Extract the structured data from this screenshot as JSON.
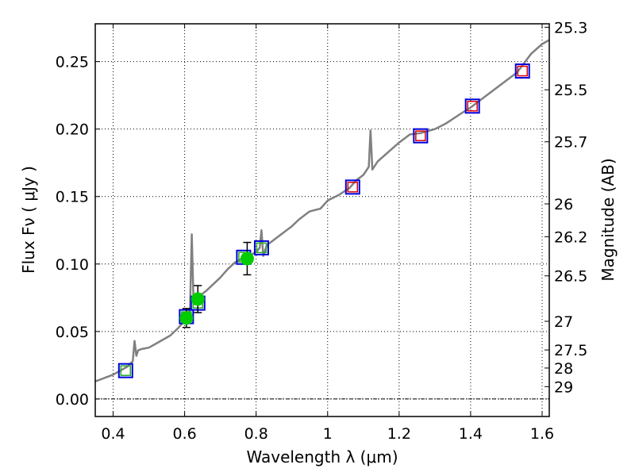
{
  "chart_data": {
    "type": "scatter",
    "xlabel": "Wavelength  λ (μm)",
    "ylabel": "Flux  Fν ( μJy )",
    "y2label": "Magnitude (AB)",
    "xlim": [
      0.35,
      1.62
    ],
    "ylim": [
      -0.013,
      0.278
    ],
    "xticks": [
      0.4,
      0.6,
      0.8,
      1.0,
      1.2,
      1.4,
      1.6
    ],
    "xtick_labels": [
      "0.4",
      "0.6",
      "0.8",
      "1",
      "1.2",
      "1.4",
      "1.6"
    ],
    "yticks": [
      0.0,
      0.05,
      0.1,
      0.15,
      0.2,
      0.25
    ],
    "ytick_labels": [
      "0.00",
      "0.05",
      "0.10",
      "0.15",
      "0.20",
      "0.25"
    ],
    "mag_ticks": [
      25.3,
      25.5,
      25.7,
      26,
      26.2,
      26.5,
      27,
      27.5,
      28,
      29
    ],
    "mag_tick_labels": [
      "25.3",
      "25.5",
      "25.7",
      "26",
      "26.2",
      "26.5",
      "27",
      "27.5",
      "28",
      "29"
    ],
    "colors": {
      "sed": "#808080",
      "model_box": "#0000dd",
      "obs": "#00cc00",
      "inner_green": "#22aa22",
      "inner_red": "#dd0000"
    },
    "sed_line": {
      "x": [
        0.35,
        0.38,
        0.4,
        0.42,
        0.44,
        0.455,
        0.46,
        0.465,
        0.47,
        0.48,
        0.5,
        0.52,
        0.54,
        0.56,
        0.58,
        0.6,
        0.615,
        0.62,
        0.625,
        0.63,
        0.64,
        0.66,
        0.68,
        0.7,
        0.72,
        0.74,
        0.76,
        0.78,
        0.8,
        0.81,
        0.815,
        0.82,
        0.83,
        0.85,
        0.88,
        0.9,
        0.92,
        0.95,
        0.98,
        1.0,
        1.03,
        1.06,
        1.08,
        1.1,
        1.115,
        1.12,
        1.125,
        1.14,
        1.17,
        1.2,
        1.23,
        1.26,
        1.3,
        1.33,
        1.37,
        1.4,
        1.43,
        1.47,
        1.5,
        1.53,
        1.55,
        1.57,
        1.6,
        1.62
      ],
      "y": [
        0.013,
        0.016,
        0.018,
        0.021,
        0.024,
        0.028,
        0.043,
        0.032,
        0.036,
        0.037,
        0.038,
        0.041,
        0.044,
        0.047,
        0.052,
        0.058,
        0.066,
        0.122,
        0.07,
        0.072,
        0.076,
        0.08,
        0.085,
        0.09,
        0.096,
        0.101,
        0.104,
        0.106,
        0.109,
        0.112,
        0.125,
        0.106,
        0.114,
        0.118,
        0.124,
        0.128,
        0.133,
        0.139,
        0.141,
        0.147,
        0.151,
        0.156,
        0.162,
        0.166,
        0.172,
        0.199,
        0.17,
        0.176,
        0.183,
        0.19,
        0.196,
        0.197,
        0.2,
        0.204,
        0.211,
        0.216,
        0.222,
        0.23,
        0.236,
        0.242,
        0.249,
        0.256,
        0.263,
        0.266
      ]
    },
    "model_points": [
      {
        "x": 0.435,
        "y": 0.021,
        "inner": "green"
      },
      {
        "x": 0.605,
        "y": 0.061,
        "inner": "green"
      },
      {
        "x": 0.637,
        "y": 0.071,
        "inner": "green"
      },
      {
        "x": 0.765,
        "y": 0.105,
        "inner": "green"
      },
      {
        "x": 0.815,
        "y": 0.112,
        "inner": "green"
      },
      {
        "x": 1.07,
        "y": 0.157,
        "inner": "red"
      },
      {
        "x": 1.26,
        "y": 0.195,
        "inner": "red"
      },
      {
        "x": 1.405,
        "y": 0.217,
        "inner": "red"
      },
      {
        "x": 1.545,
        "y": 0.243,
        "inner": "red"
      }
    ],
    "observed_points": [
      {
        "x": 0.605,
        "y": 0.06,
        "err": 0.007
      },
      {
        "x": 0.637,
        "y": 0.074,
        "err": 0.01
      },
      {
        "x": 0.775,
        "y": 0.104,
        "err": 0.012
      }
    ]
  }
}
